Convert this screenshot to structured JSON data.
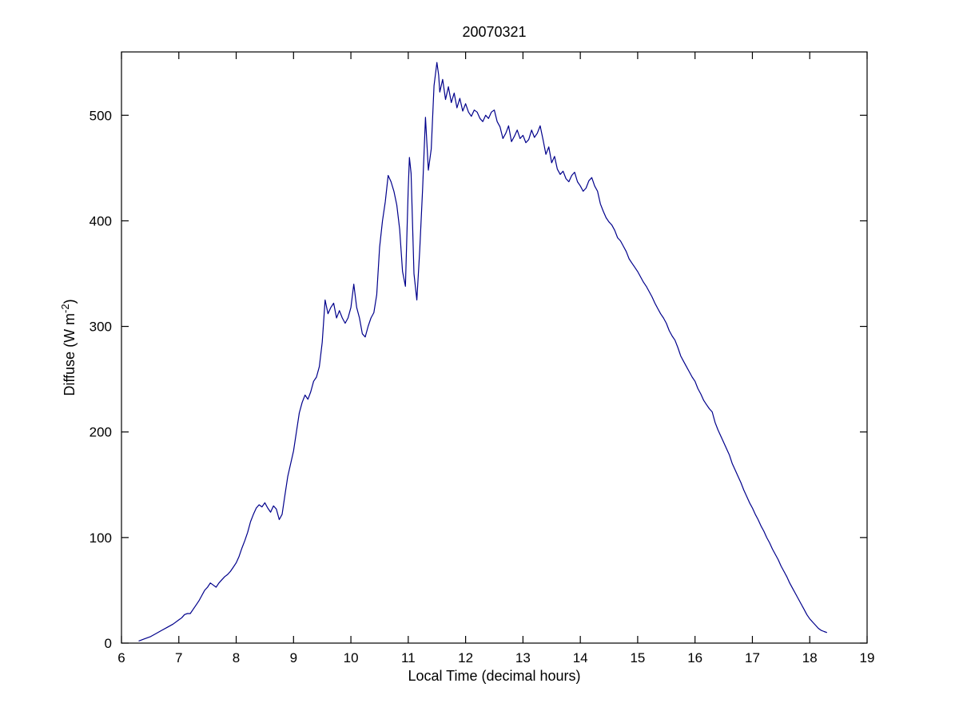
{
  "chart_data": {
    "type": "line",
    "title": "20070321",
    "xlabel": "Local Time (decimal hours)",
    "ylabel_prefix": "Diffuse (W m",
    "ylabel_sup": "-2",
    "ylabel_suffix": ")",
    "xlim": [
      6,
      19
    ],
    "ylim": [
      0,
      560
    ],
    "xticks": [
      6,
      7,
      8,
      9,
      10,
      11,
      12,
      13,
      14,
      15,
      16,
      17,
      18,
      19
    ],
    "yticks": [
      0,
      100,
      200,
      300,
      400,
      500
    ],
    "grid": false,
    "legend": "none",
    "line_color": "#00008B",
    "axis_color": "#000000",
    "series": [
      {
        "name": "diffuse",
        "points": [
          [
            6.3,
            2
          ],
          [
            6.4,
            4
          ],
          [
            6.5,
            6
          ],
          [
            6.6,
            9
          ],
          [
            6.7,
            12
          ],
          [
            6.8,
            15
          ],
          [
            6.9,
            18
          ],
          [
            7.0,
            22
          ],
          [
            7.05,
            24
          ],
          [
            7.1,
            27
          ],
          [
            7.15,
            28
          ],
          [
            7.2,
            28
          ],
          [
            7.25,
            32
          ],
          [
            7.3,
            36
          ],
          [
            7.35,
            40
          ],
          [
            7.4,
            45
          ],
          [
            7.45,
            50
          ],
          [
            7.5,
            53
          ],
          [
            7.55,
            57
          ],
          [
            7.6,
            55
          ],
          [
            7.65,
            53
          ],
          [
            7.7,
            57
          ],
          [
            7.75,
            60
          ],
          [
            7.8,
            63
          ],
          [
            7.85,
            65
          ],
          [
            7.9,
            68
          ],
          [
            7.95,
            72
          ],
          [
            8.0,
            76
          ],
          [
            8.05,
            82
          ],
          [
            8.1,
            90
          ],
          [
            8.15,
            97
          ],
          [
            8.2,
            105
          ],
          [
            8.25,
            115
          ],
          [
            8.3,
            122
          ],
          [
            8.35,
            128
          ],
          [
            8.4,
            131
          ],
          [
            8.45,
            129
          ],
          [
            8.5,
            133
          ],
          [
            8.55,
            128
          ],
          [
            8.6,
            124
          ],
          [
            8.65,
            130
          ],
          [
            8.7,
            127
          ],
          [
            8.75,
            117
          ],
          [
            8.8,
            122
          ],
          [
            8.85,
            140
          ],
          [
            8.9,
            158
          ],
          [
            8.95,
            170
          ],
          [
            9.0,
            182
          ],
          [
            9.05,
            200
          ],
          [
            9.1,
            218
          ],
          [
            9.15,
            228
          ],
          [
            9.2,
            235
          ],
          [
            9.25,
            231
          ],
          [
            9.3,
            238
          ],
          [
            9.35,
            248
          ],
          [
            9.4,
            252
          ],
          [
            9.45,
            262
          ],
          [
            9.5,
            285
          ],
          [
            9.55,
            325
          ],
          [
            9.6,
            312
          ],
          [
            9.65,
            318
          ],
          [
            9.7,
            322
          ],
          [
            9.75,
            308
          ],
          [
            9.8,
            315
          ],
          [
            9.85,
            308
          ],
          [
            9.9,
            303
          ],
          [
            9.95,
            308
          ],
          [
            10.0,
            318
          ],
          [
            10.05,
            340
          ],
          [
            10.1,
            318
          ],
          [
            10.15,
            308
          ],
          [
            10.2,
            293
          ],
          [
            10.25,
            290
          ],
          [
            10.3,
            300
          ],
          [
            10.35,
            308
          ],
          [
            10.4,
            313
          ],
          [
            10.45,
            330
          ],
          [
            10.5,
            375
          ],
          [
            10.55,
            400
          ],
          [
            10.6,
            418
          ],
          [
            10.65,
            443
          ],
          [
            10.7,
            437
          ],
          [
            10.75,
            428
          ],
          [
            10.8,
            415
          ],
          [
            10.85,
            392
          ],
          [
            10.9,
            352
          ],
          [
            10.95,
            338
          ],
          [
            11.0,
            430
          ],
          [
            11.02,
            460
          ],
          [
            11.05,
            445
          ],
          [
            11.1,
            350
          ],
          [
            11.15,
            325
          ],
          [
            11.2,
            372
          ],
          [
            11.25,
            430
          ],
          [
            11.3,
            498
          ],
          [
            11.35,
            448
          ],
          [
            11.4,
            468
          ],
          [
            11.45,
            528
          ],
          [
            11.5,
            550
          ],
          [
            11.53,
            538
          ],
          [
            11.55,
            522
          ],
          [
            11.6,
            534
          ],
          [
            11.65,
            515
          ],
          [
            11.7,
            527
          ],
          [
            11.75,
            512
          ],
          [
            11.8,
            521
          ],
          [
            11.85,
            507
          ],
          [
            11.9,
            516
          ],
          [
            11.95,
            504
          ],
          [
            12.0,
            511
          ],
          [
            12.05,
            503
          ],
          [
            12.1,
            499
          ],
          [
            12.15,
            505
          ],
          [
            12.2,
            503
          ],
          [
            12.25,
            497
          ],
          [
            12.3,
            494
          ],
          [
            12.35,
            500
          ],
          [
            12.4,
            497
          ],
          [
            12.45,
            503
          ],
          [
            12.5,
            505
          ],
          [
            12.55,
            494
          ],
          [
            12.6,
            489
          ],
          [
            12.65,
            478
          ],
          [
            12.7,
            483
          ],
          [
            12.75,
            490
          ],
          [
            12.8,
            475
          ],
          [
            12.85,
            480
          ],
          [
            12.9,
            486
          ],
          [
            12.95,
            478
          ],
          [
            13.0,
            481
          ],
          [
            13.05,
            474
          ],
          [
            13.1,
            477
          ],
          [
            13.15,
            486
          ],
          [
            13.2,
            479
          ],
          [
            13.25,
            483
          ],
          [
            13.3,
            490
          ],
          [
            13.35,
            477
          ],
          [
            13.4,
            463
          ],
          [
            13.45,
            470
          ],
          [
            13.5,
            455
          ],
          [
            13.55,
            461
          ],
          [
            13.6,
            449
          ],
          [
            13.65,
            444
          ],
          [
            13.7,
            447
          ],
          [
            13.75,
            440
          ],
          [
            13.8,
            437
          ],
          [
            13.85,
            443
          ],
          [
            13.9,
            446
          ],
          [
            13.95,
            437
          ],
          [
            14.0,
            433
          ],
          [
            14.05,
            428
          ],
          [
            14.1,
            431
          ],
          [
            14.15,
            438
          ],
          [
            14.2,
            441
          ],
          [
            14.25,
            433
          ],
          [
            14.3,
            428
          ],
          [
            14.35,
            416
          ],
          [
            14.4,
            409
          ],
          [
            14.45,
            403
          ],
          [
            14.5,
            399
          ],
          [
            14.55,
            396
          ],
          [
            14.6,
            391
          ],
          [
            14.65,
            384
          ],
          [
            14.7,
            381
          ],
          [
            14.75,
            376
          ],
          [
            14.8,
            371
          ],
          [
            14.85,
            364
          ],
          [
            14.9,
            360
          ],
          [
            14.95,
            356
          ],
          [
            15.0,
            352
          ],
          [
            15.05,
            347
          ],
          [
            15.1,
            342
          ],
          [
            15.15,
            338
          ],
          [
            15.2,
            333
          ],
          [
            15.25,
            328
          ],
          [
            15.3,
            322
          ],
          [
            15.35,
            317
          ],
          [
            15.4,
            312
          ],
          [
            15.45,
            308
          ],
          [
            15.5,
            303
          ],
          [
            15.55,
            296
          ],
          [
            15.6,
            291
          ],
          [
            15.65,
            287
          ],
          [
            15.7,
            280
          ],
          [
            15.75,
            272
          ],
          [
            15.8,
            267
          ],
          [
            15.85,
            262
          ],
          [
            15.9,
            257
          ],
          [
            15.95,
            252
          ],
          [
            16.0,
            248
          ],
          [
            16.05,
            241
          ],
          [
            16.1,
            236
          ],
          [
            16.15,
            230
          ],
          [
            16.2,
            226
          ],
          [
            16.25,
            222
          ],
          [
            16.3,
            219
          ],
          [
            16.35,
            209
          ],
          [
            16.4,
            202
          ],
          [
            16.45,
            196
          ],
          [
            16.5,
            190
          ],
          [
            16.55,
            184
          ],
          [
            16.6,
            178
          ],
          [
            16.65,
            170
          ],
          [
            16.7,
            164
          ],
          [
            16.75,
            158
          ],
          [
            16.8,
            152
          ],
          [
            16.85,
            145
          ],
          [
            16.9,
            139
          ],
          [
            16.95,
            133
          ],
          [
            17.0,
            128
          ],
          [
            17.05,
            122
          ],
          [
            17.1,
            117
          ],
          [
            17.15,
            111
          ],
          [
            17.2,
            106
          ],
          [
            17.25,
            100
          ],
          [
            17.3,
            95
          ],
          [
            17.35,
            89
          ],
          [
            17.4,
            84
          ],
          [
            17.45,
            79
          ],
          [
            17.5,
            73
          ],
          [
            17.55,
            68
          ],
          [
            17.6,
            63
          ],
          [
            17.65,
            57
          ],
          [
            17.7,
            52
          ],
          [
            17.75,
            47
          ],
          [
            17.8,
            42
          ],
          [
            17.85,
            37
          ],
          [
            17.9,
            32
          ],
          [
            17.95,
            27
          ],
          [
            18.0,
            23
          ],
          [
            18.05,
            20
          ],
          [
            18.1,
            17
          ],
          [
            18.15,
            14
          ],
          [
            18.2,
            12
          ],
          [
            18.25,
            11
          ],
          [
            18.3,
            10
          ]
        ]
      }
    ]
  }
}
